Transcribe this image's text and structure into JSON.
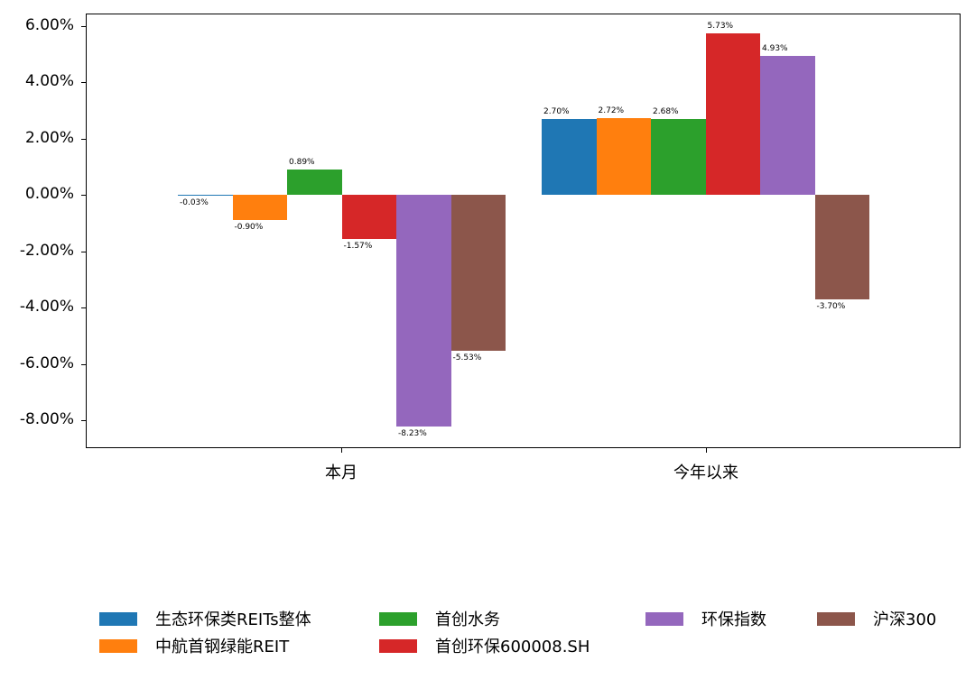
{
  "chart_data": {
    "type": "bar",
    "title": "",
    "xlabel": "",
    "ylabel": "",
    "categories": [
      "本月",
      "今年以来"
    ],
    "series": [
      {
        "name": "生态环保类REITs整体",
        "color": "#1f77b4",
        "values": [
          -0.03,
          2.7
        ],
        "labels": [
          "-0.03%",
          "2.70%"
        ]
      },
      {
        "name": "中航首钢绿能REIT",
        "color": "#ff7f0e",
        "values": [
          -0.9,
          2.72
        ],
        "labels": [
          "-0.90%",
          "2.72%"
        ]
      },
      {
        "name": "首创水务",
        "color": "#2ca02c",
        "values": [
          0.89,
          2.68
        ],
        "labels": [
          "0.89%",
          "2.68%"
        ]
      },
      {
        "name": "首创环保600008.SH",
        "color": "#d62728",
        "values": [
          -1.57,
          5.73
        ],
        "labels": [
          "-1.57%",
          "5.73%"
        ]
      },
      {
        "name": "环保指数",
        "color": "#9467bd",
        "values": [
          -8.23,
          4.93
        ],
        "labels": [
          "-8.23%",
          "4.93%"
        ]
      },
      {
        "name": "沪深300",
        "color": "#8c564b",
        "values": [
          -5.53,
          -3.7
        ],
        "labels": [
          "-5.53%",
          "-3.70%"
        ]
      }
    ],
    "ylim": [
      -8.96,
      6.4
    ],
    "yticks": [
      6,
      4,
      2,
      0,
      -2,
      -4,
      -6,
      -8
    ],
    "ytick_labels": [
      "6.00%",
      "4.00%",
      "2.00%",
      "0.00%",
      "-2.00%",
      "-4.00%",
      "-6.00%",
      "-8.00%"
    ],
    "grid": false,
    "legend_position": "bottom",
    "unit": "%"
  },
  "legend": {
    "items": [
      {
        "label": "生态环保类REITs整体",
        "color": "#1f77b4"
      },
      {
        "label": "中航首钢绿能REIT",
        "color": "#ff7f0e"
      },
      {
        "label": "首创水务",
        "color": "#2ca02c"
      },
      {
        "label": "首创环保600008.SH",
        "color": "#d62728"
      },
      {
        "label": "环保指数",
        "color": "#9467bd"
      },
      {
        "label": "沪深300",
        "color": "#8c564b"
      }
    ]
  }
}
